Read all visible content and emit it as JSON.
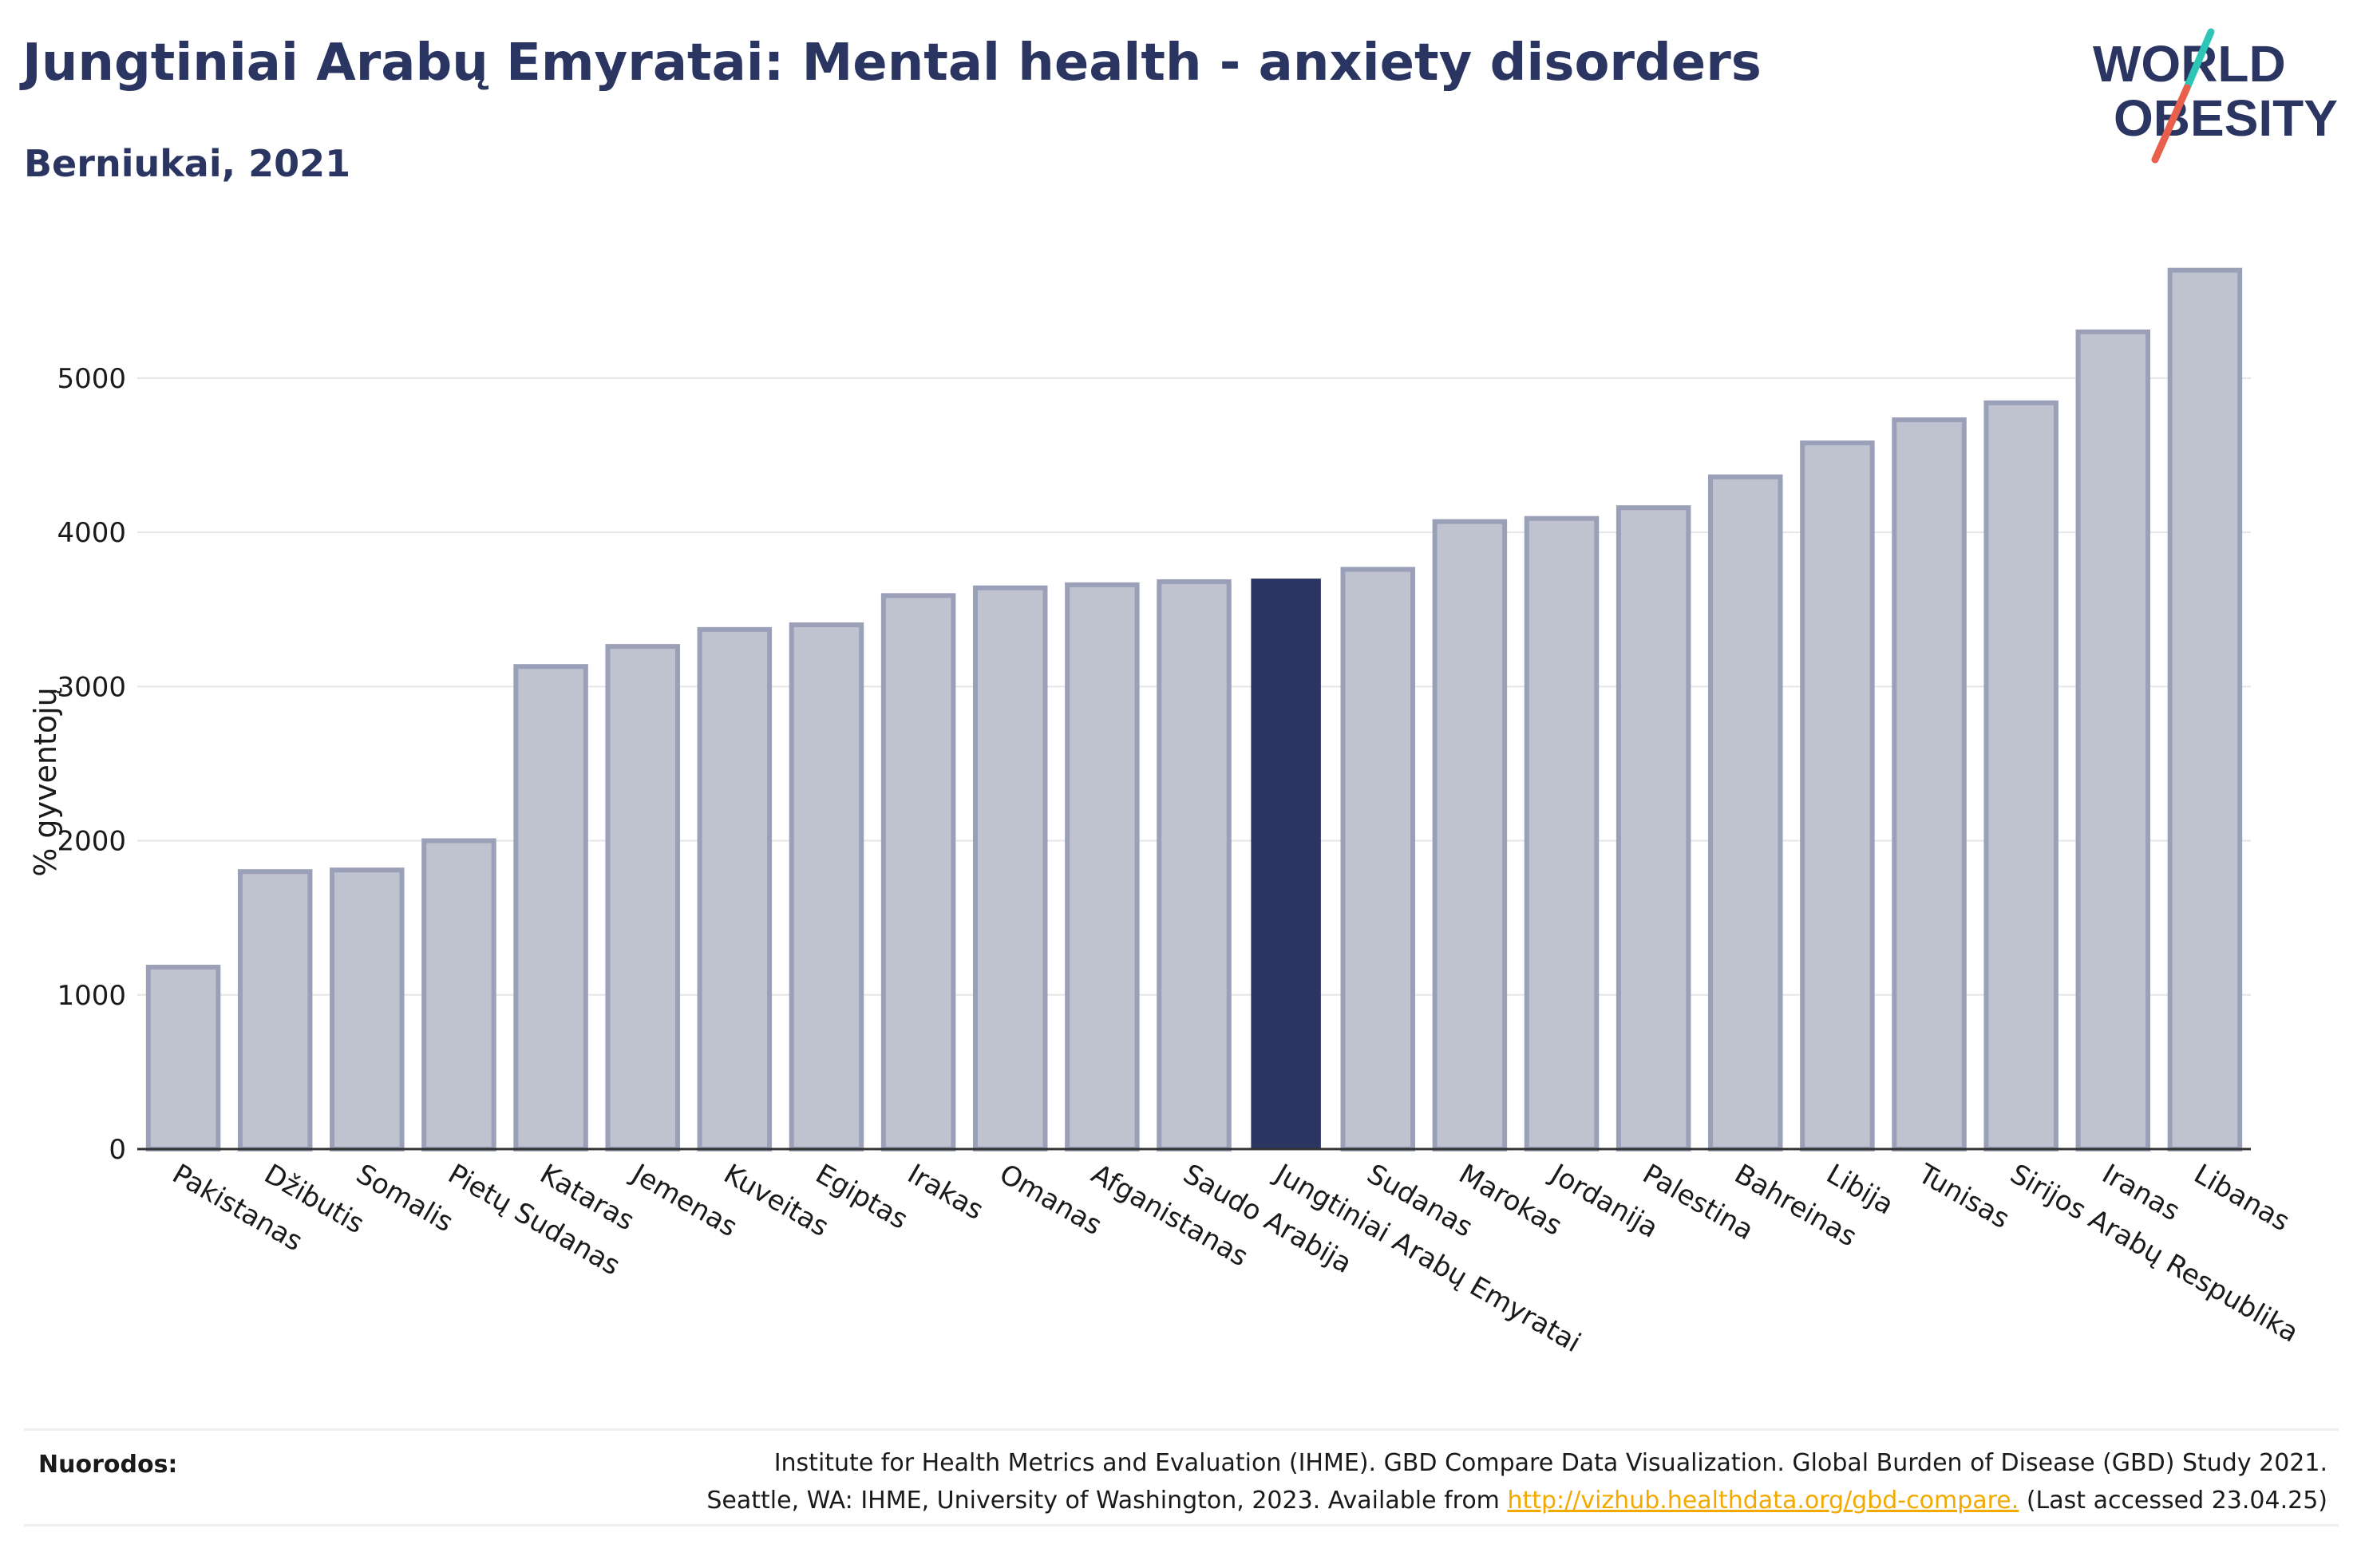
{
  "header": {
    "title": "Jungtiniai Arabų Emyratai: Mental health - anxiety disorders",
    "subtitle": "Berniukai, 2021"
  },
  "logo": {
    "line1": "WORLD",
    "line2": "OBESITY",
    "accent_colors": [
      "#2ec4b6",
      "#e8604c"
    ]
  },
  "chart_data": {
    "type": "bar",
    "title": "Jungtiniai Arabų Emyratai: Mental health - anxiety disorders",
    "subtitle": "Berniukai, 2021",
    "xlabel": "",
    "ylabel": "% gyventojų",
    "ylim": [
      0,
      5900
    ],
    "yticks": [
      0,
      1000,
      2000,
      3000,
      4000,
      5000
    ],
    "grid": true,
    "highlight": "Jungtiniai Arabų Emyratai",
    "colors": {
      "bar": "#bfc2cf",
      "bar_stroke": "#9aa0b8",
      "highlight": "#2b3561",
      "grid": "#e6e6e6"
    },
    "categories": [
      "Pakistanas",
      "Džibutis",
      "Somalis",
      "Pietų Sudanas",
      "Kataras",
      "Jemenas",
      "Kuveitas",
      "Egiptas",
      "Irakas",
      "Omanas",
      "Afganistanas",
      "Saudo Arabija",
      "Jungtiniai Arabų Emyratai",
      "Sudanas",
      "Marokas",
      "Jordanija",
      "Palestina",
      "Bahreinas",
      "Libija",
      "Tunisas",
      "Sirijos Arabų Respublika",
      "Iranas",
      "Libanas"
    ],
    "values": [
      1180,
      1800,
      1810,
      2000,
      3130,
      3260,
      3370,
      3400,
      3590,
      3640,
      3660,
      3680,
      3700,
      3760,
      4070,
      4090,
      4160,
      4360,
      4580,
      4730,
      4840,
      5300,
      5700
    ]
  },
  "footer": {
    "refs_label": "Nuorodos:",
    "refs_line1": "Institute for Health Metrics and Evaluation (IHME). GBD Compare Data Visualization. Global Burden of Disease (GBD) Study 2021.",
    "refs_line2_pre": "Seattle, WA: IHME, University of Washington, 2023. Available from ",
    "refs_link": "http://vizhub.healthdata.org/gbd-compare.",
    "refs_line2_post": " (Last accessed 23.04.25)"
  }
}
